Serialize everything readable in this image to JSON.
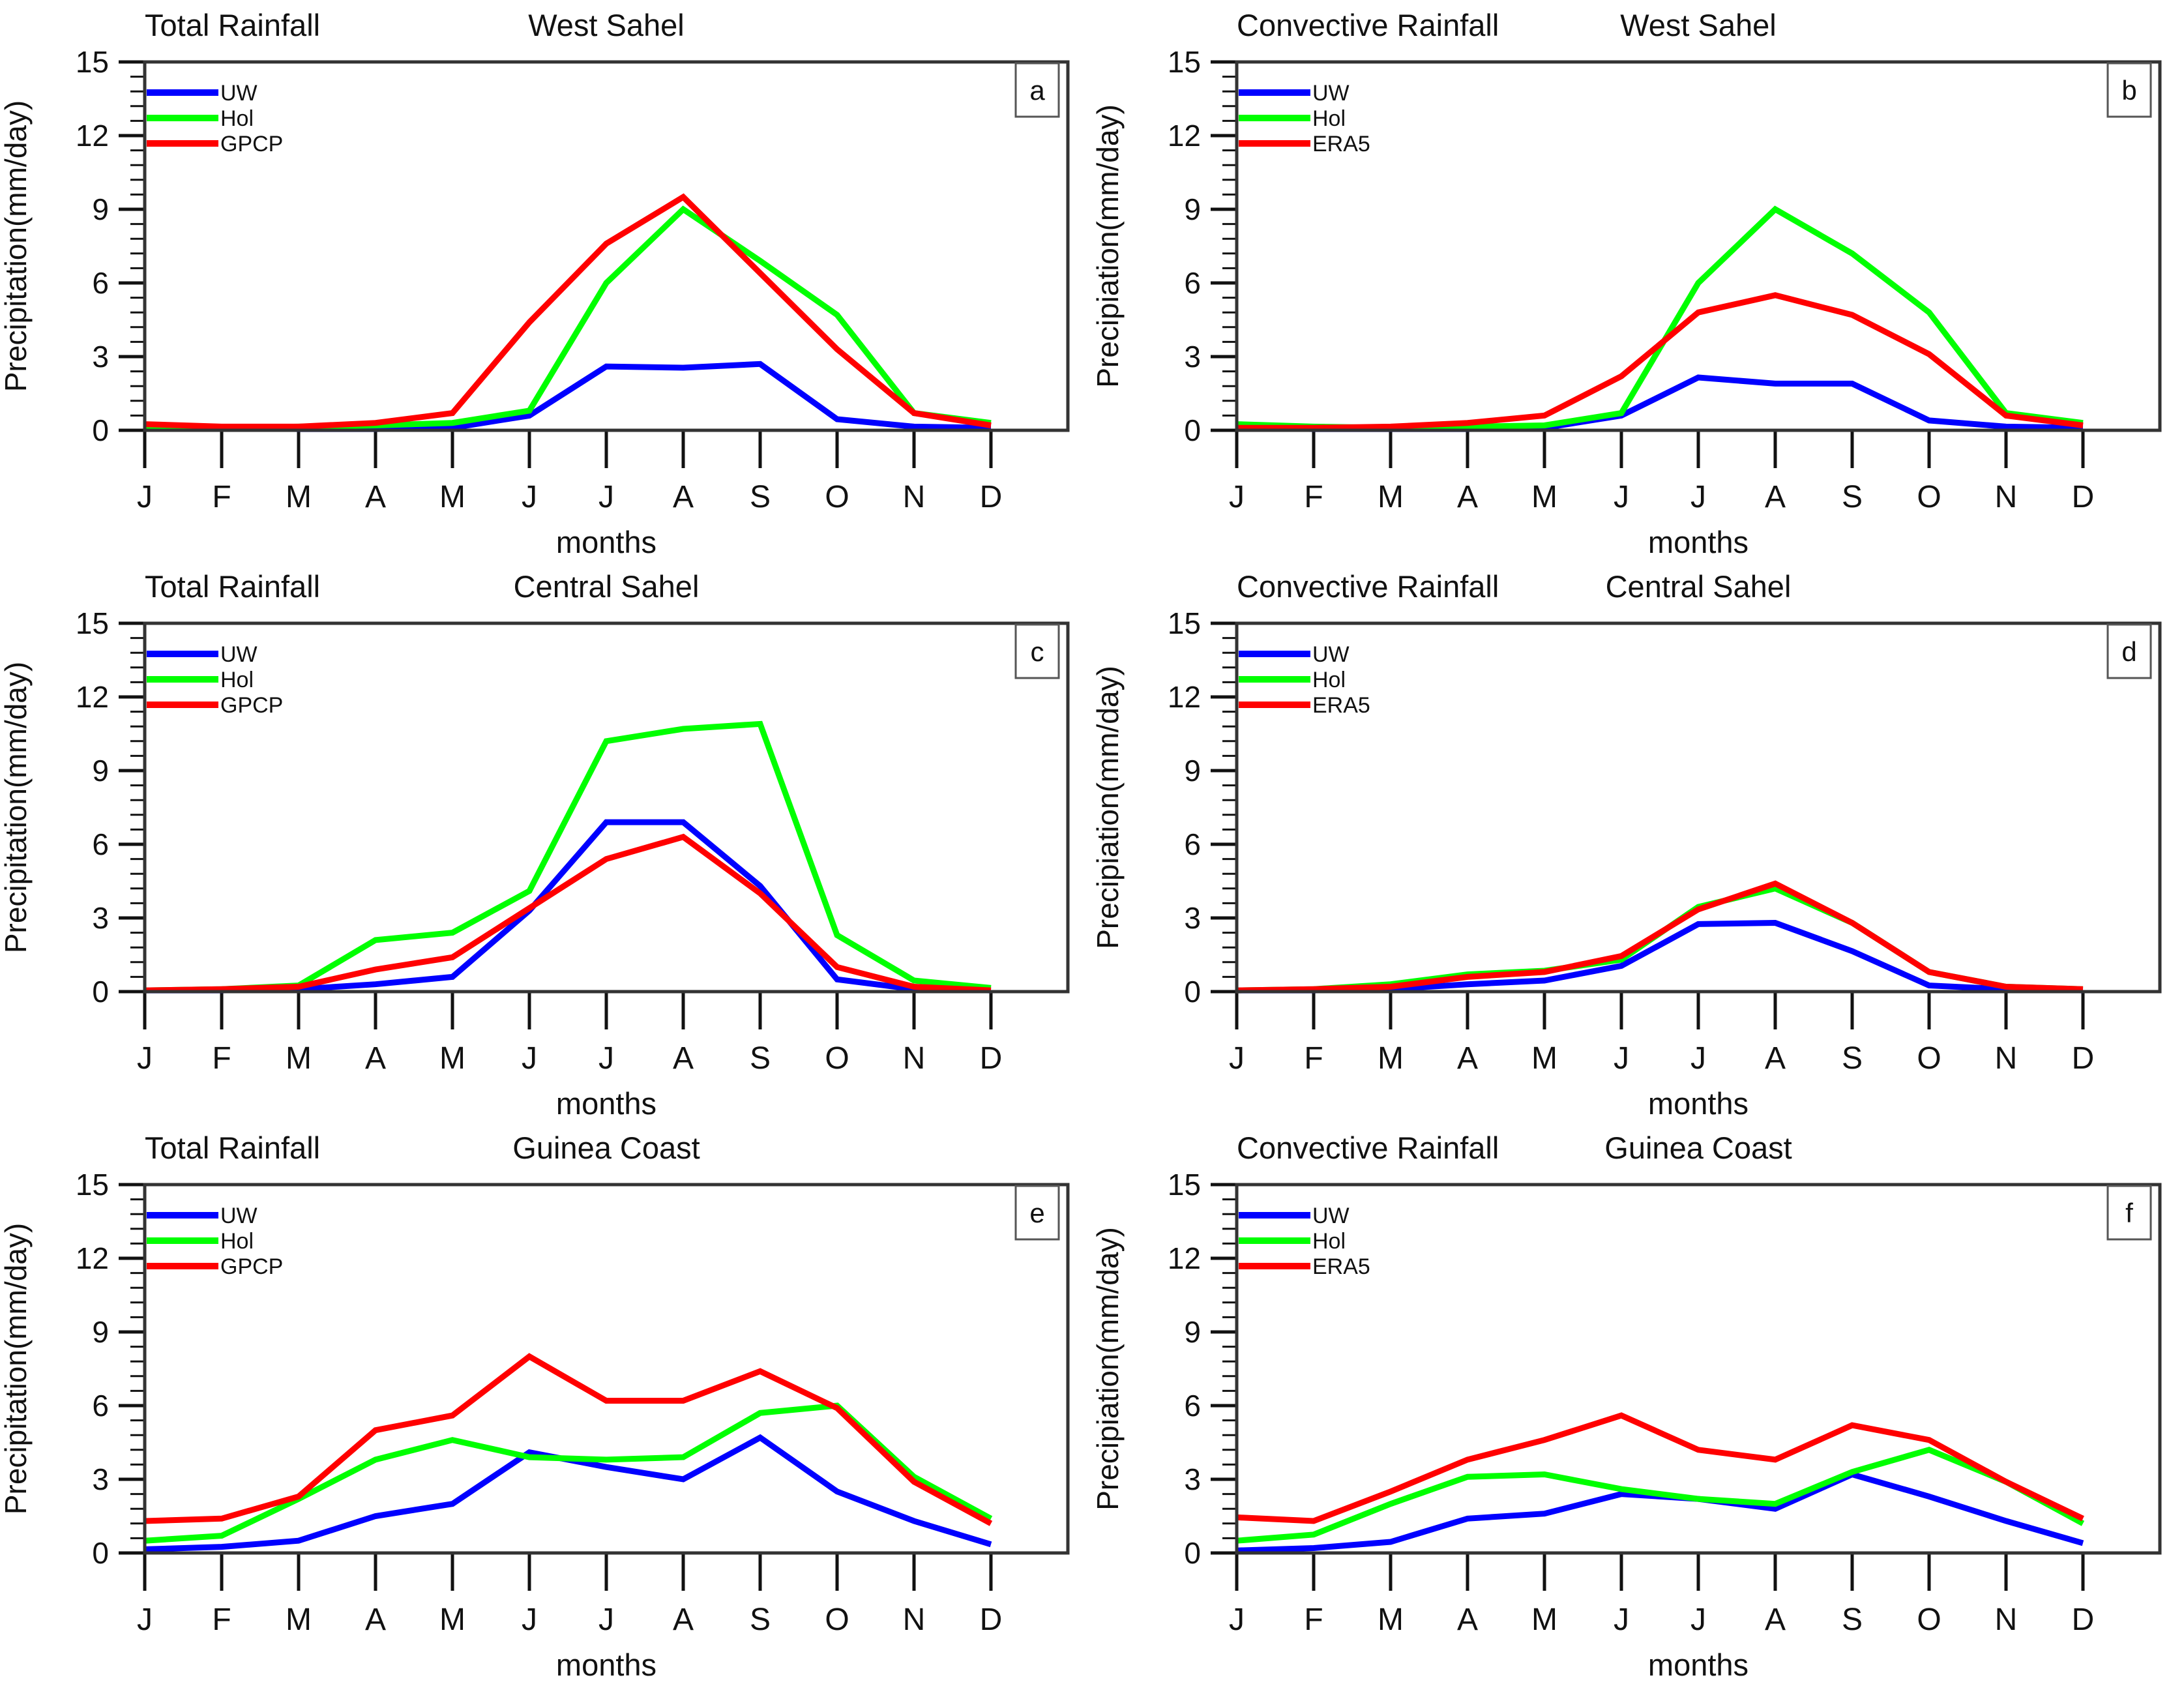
{
  "figure": {
    "background": "#ffffff",
    "axis_color": "#333333",
    "tick_color": "#111111",
    "text_color": "#111111",
    "months_axis_label": "months",
    "month_letters": [
      "J",
      "F",
      "M",
      "A",
      "M",
      "J",
      "J",
      "A",
      "S",
      "O",
      "N",
      "D"
    ],
    "series_colors": {
      "UW": "#0000ff",
      "Hol": "#00ff00",
      "GPCP": "#ff0000",
      "ERA5": "#ff0000"
    }
  },
  "chart_data": [
    {
      "type": "line",
      "panel_letter": "a",
      "title_left": "Total Rainfall",
      "title_center": "West Sahel",
      "ylabel": "Precipitation(mm/day)",
      "xlabel": "months",
      "categories": [
        "J",
        "F",
        "M",
        "A",
        "M",
        "J",
        "J",
        "A",
        "S",
        "O",
        "N",
        "D"
      ],
      "ylim": [
        0,
        15
      ],
      "yticks": [
        0,
        3,
        6,
        9,
        12,
        15
      ],
      "minor_tick_step": 0.6,
      "grid": false,
      "legend_position": "top-left",
      "series": [
        {
          "name": "UW",
          "color": "#0000ff",
          "values": [
            0.2,
            0.1,
            0.05,
            0.05,
            0.1,
            0.6,
            2.6,
            2.55,
            2.7,
            0.45,
            0.15,
            0.1
          ]
        },
        {
          "name": "Hol",
          "color": "#00ff00",
          "values": [
            0.15,
            0.1,
            0.15,
            0.2,
            0.3,
            0.8,
            6.0,
            9.0,
            6.9,
            4.7,
            0.7,
            0.3
          ]
        },
        {
          "name": "GPCP",
          "color": "#ff0000",
          "values": [
            0.25,
            0.15,
            0.15,
            0.3,
            0.7,
            4.4,
            7.6,
            9.5,
            6.4,
            3.3,
            0.7,
            0.2
          ]
        }
      ]
    },
    {
      "type": "line",
      "panel_letter": "b",
      "title_left": "Convective Rainfall",
      "title_center": "West Sahel",
      "ylabel": "Precipiation(mm/day)",
      "xlabel": "months",
      "categories": [
        "J",
        "F",
        "M",
        "A",
        "M",
        "J",
        "J",
        "A",
        "S",
        "O",
        "N",
        "D"
      ],
      "ylim": [
        0,
        15
      ],
      "yticks": [
        0,
        3,
        6,
        9,
        12,
        15
      ],
      "minor_tick_step": 0.6,
      "grid": false,
      "legend_position": "top-left",
      "series": [
        {
          "name": "UW",
          "color": "#0000ff",
          "values": [
            0.1,
            0.05,
            0.05,
            0.05,
            0.1,
            0.6,
            2.15,
            1.9,
            1.9,
            0.4,
            0.15,
            0.1
          ]
        },
        {
          "name": "Hol",
          "color": "#00ff00",
          "values": [
            0.25,
            0.15,
            0.1,
            0.15,
            0.2,
            0.7,
            6.0,
            9.0,
            7.2,
            4.8,
            0.7,
            0.3
          ]
        },
        {
          "name": "ERA5",
          "color": "#ff0000",
          "values": [
            0.1,
            0.1,
            0.15,
            0.3,
            0.6,
            2.2,
            4.8,
            5.5,
            4.7,
            3.1,
            0.6,
            0.2
          ]
        }
      ]
    },
    {
      "type": "line",
      "panel_letter": "c",
      "title_left": "Total Rainfall",
      "title_center": "Central Sahel",
      "ylabel": "Precipitation(mm/day)",
      "xlabel": "months",
      "categories": [
        "J",
        "F",
        "M",
        "A",
        "M",
        "J",
        "J",
        "A",
        "S",
        "O",
        "N",
        "D"
      ],
      "ylim": [
        0,
        15
      ],
      "yticks": [
        0,
        3,
        6,
        9,
        12,
        15
      ],
      "minor_tick_step": 0.6,
      "grid": false,
      "legend_position": "top-left",
      "series": [
        {
          "name": "UW",
          "color": "#0000ff",
          "values": [
            0.05,
            0.05,
            0.1,
            0.3,
            0.6,
            3.3,
            6.9,
            6.9,
            4.3,
            0.5,
            0.1,
            0.05
          ]
        },
        {
          "name": "Hol",
          "color": "#00ff00",
          "values": [
            0.05,
            0.1,
            0.25,
            2.1,
            2.4,
            4.1,
            10.2,
            10.7,
            10.9,
            2.3,
            0.45,
            0.15
          ]
        },
        {
          "name": "GPCP",
          "color": "#ff0000",
          "values": [
            0.05,
            0.1,
            0.2,
            0.9,
            1.4,
            3.4,
            5.4,
            6.3,
            4.0,
            1.0,
            0.2,
            0.05
          ]
        }
      ]
    },
    {
      "type": "line",
      "panel_letter": "d",
      "title_left": "Convective Rainfall",
      "title_center": "Central Sahel",
      "ylabel": "Precipiation(mm/day)",
      "xlabel": "months",
      "categories": [
        "J",
        "F",
        "M",
        "A",
        "M",
        "J",
        "J",
        "A",
        "S",
        "O",
        "N",
        "D"
      ],
      "ylim": [
        0,
        15
      ],
      "yticks": [
        0,
        3,
        6,
        9,
        12,
        15
      ],
      "minor_tick_step": 0.6,
      "grid": false,
      "legend_position": "top-left",
      "series": [
        {
          "name": "UW",
          "color": "#0000ff",
          "values": [
            0.05,
            0.05,
            0.1,
            0.3,
            0.45,
            1.05,
            2.75,
            2.8,
            1.65,
            0.25,
            0.1,
            0.05
          ]
        },
        {
          "name": "Hol",
          "color": "#00ff00",
          "values": [
            0.05,
            0.1,
            0.3,
            0.7,
            0.85,
            1.3,
            3.45,
            4.2,
            2.8,
            0.8,
            0.2,
            0.1
          ]
        },
        {
          "name": "ERA5",
          "color": "#ff0000",
          "values": [
            0.05,
            0.1,
            0.2,
            0.6,
            0.8,
            1.45,
            3.35,
            4.4,
            2.8,
            0.8,
            0.2,
            0.1
          ]
        }
      ]
    },
    {
      "type": "line",
      "panel_letter": "e",
      "title_left": "Total Rainfall",
      "title_center": "Guinea Coast",
      "ylabel": "Precipitation(mm/day)",
      "xlabel": "months",
      "categories": [
        "J",
        "F",
        "M",
        "A",
        "M",
        "J",
        "J",
        "A",
        "S",
        "O",
        "N",
        "D"
      ],
      "ylim": [
        0,
        15
      ],
      "yticks": [
        0,
        3,
        6,
        9,
        12,
        15
      ],
      "minor_tick_step": 0.6,
      "grid": false,
      "legend_position": "top-left",
      "series": [
        {
          "name": "UW",
          "color": "#0000ff",
          "values": [
            0.15,
            0.25,
            0.5,
            1.5,
            2.0,
            4.1,
            3.5,
            3.0,
            4.7,
            2.5,
            1.3,
            0.35
          ]
        },
        {
          "name": "Hol",
          "color": "#00ff00",
          "values": [
            0.5,
            0.7,
            2.2,
            3.8,
            4.6,
            3.9,
            3.8,
            3.9,
            5.7,
            6.0,
            3.1,
            1.4
          ]
        },
        {
          "name": "GPCP",
          "color": "#ff0000",
          "values": [
            1.3,
            1.4,
            2.3,
            5.0,
            5.6,
            8.0,
            6.2,
            6.2,
            7.4,
            5.9,
            2.9,
            1.2
          ]
        }
      ]
    },
    {
      "type": "line",
      "panel_letter": "f",
      "title_left": "Convective Rainfall",
      "title_center": "Guinea Coast",
      "ylabel": "Precipiation(mm/day)",
      "xlabel": "months",
      "categories": [
        "J",
        "F",
        "M",
        "A",
        "M",
        "J",
        "J",
        "A",
        "S",
        "O",
        "N",
        "D"
      ],
      "ylim": [
        0,
        15
      ],
      "yticks": [
        0,
        3,
        6,
        9,
        12,
        15
      ],
      "minor_tick_step": 0.6,
      "grid": false,
      "legend_position": "top-left",
      "series": [
        {
          "name": "UW",
          "color": "#0000ff",
          "values": [
            0.1,
            0.2,
            0.45,
            1.4,
            1.6,
            2.4,
            2.2,
            1.8,
            3.2,
            2.3,
            1.3,
            0.4
          ]
        },
        {
          "name": "Hol",
          "color": "#00ff00",
          "values": [
            0.5,
            0.75,
            2.0,
            3.1,
            3.2,
            2.6,
            2.2,
            2.0,
            3.3,
            4.2,
            2.9,
            1.2
          ]
        },
        {
          "name": "ERA5",
          "color": "#ff0000",
          "values": [
            1.45,
            1.3,
            2.5,
            3.8,
            4.6,
            5.6,
            4.2,
            3.8,
            5.2,
            4.6,
            2.9,
            1.4
          ]
        }
      ]
    }
  ]
}
